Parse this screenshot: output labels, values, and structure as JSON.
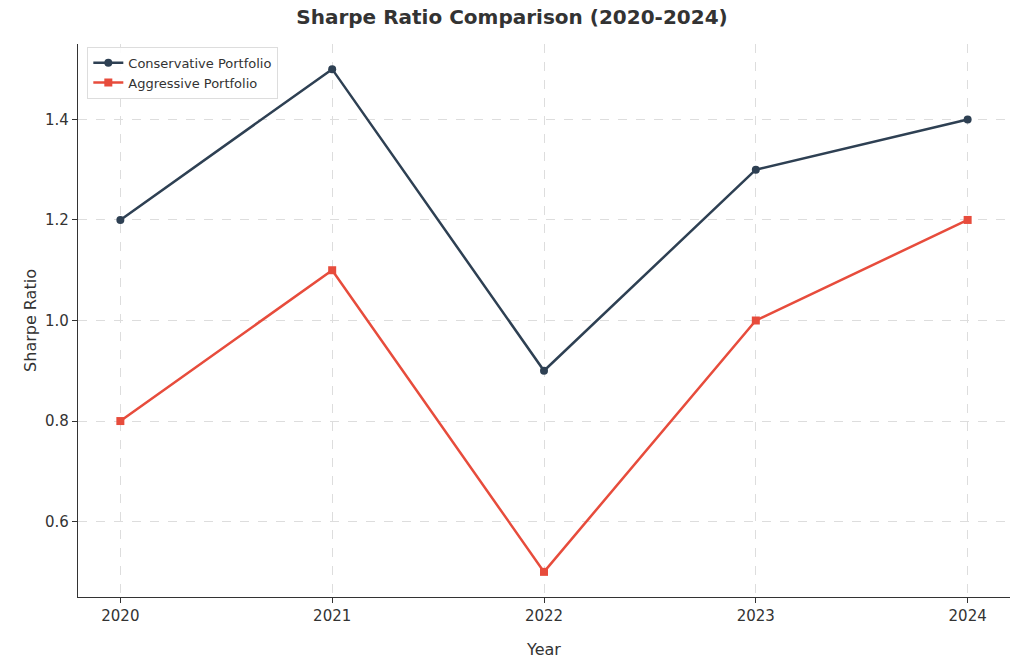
{
  "chart_data": {
    "type": "line",
    "title": "Sharpe Ratio Comparison (2020-2024)",
    "x_label": "Year",
    "y_label": "Sharpe Ratio",
    "x": [
      2020,
      2021,
      2022,
      2023,
      2024
    ],
    "series": [
      {
        "name": "Conservative Portfolio",
        "color": "#2e4053",
        "marker": "circle",
        "values": [
          1.2,
          1.5,
          0.9,
          1.3,
          1.4
        ]
      },
      {
        "name": "Aggressive Portfolio",
        "color": "#e74c3c",
        "marker": "square",
        "values": [
          0.8,
          1.1,
          0.5,
          1.0,
          1.2
        ]
      }
    ],
    "xlim": [
      2019.8,
      2024.2
    ],
    "xticks": [
      2020,
      2021,
      2022,
      2023,
      2024
    ],
    "ylim": [
      0.45,
      1.55
    ],
    "yticks": [
      0.6,
      0.8,
      {
        "value": 1,
        "label": "1.0"
      },
      1.2,
      1.4
    ],
    "grid": true,
    "legend": "upper left"
  }
}
